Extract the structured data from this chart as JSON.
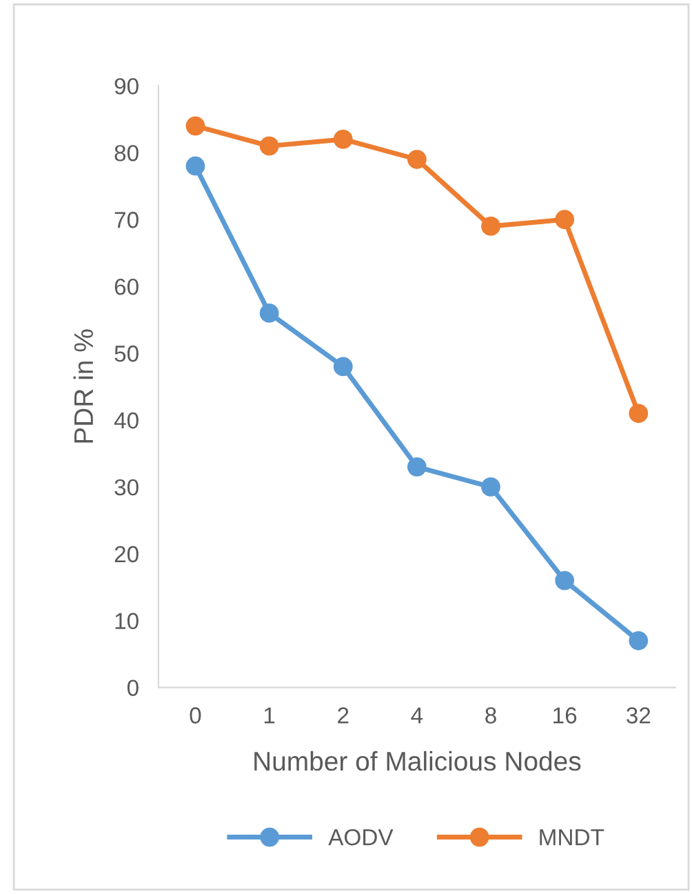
{
  "chart_data": {
    "type": "line",
    "xlabel": "Number of Malicious Nodes",
    "ylabel": "PDR in %",
    "categories": [
      "0",
      "1",
      "2",
      "4",
      "8",
      "16",
      "32"
    ],
    "series": [
      {
        "name": "AODV",
        "color": "#5b9bd5",
        "values": [
          78,
          56,
          48,
          33,
          30,
          16,
          7
        ]
      },
      {
        "name": "MNDT",
        "color": "#ed7d31",
        "values": [
          84,
          81,
          82,
          79,
          69,
          70,
          41
        ]
      }
    ],
    "ylim": [
      0,
      90
    ],
    "yticks": [
      0,
      10,
      20,
      30,
      40,
      50,
      60,
      70,
      80,
      90
    ],
    "grid": false,
    "legend": "bottom",
    "marker": "circle",
    "line_style": "solid"
  }
}
